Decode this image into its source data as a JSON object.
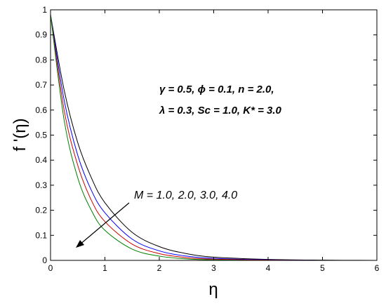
{
  "chart_data": {
    "type": "line",
    "xlabel": "η",
    "ylabel": "f '(η)",
    "xlim": [
      0,
      6
    ],
    "ylim": [
      0,
      1
    ],
    "xticks": [
      0,
      1,
      2,
      3,
      4,
      5,
      6
    ],
    "yticks": [
      0,
      0.1,
      0.2,
      0.3,
      0.4,
      0.5,
      0.6,
      0.7,
      0.8,
      0.9,
      1
    ],
    "xtick_labels": [
      "0",
      "1",
      "2",
      "3",
      "4",
      "5",
      "6"
    ],
    "ytick_labels": [
      "0",
      "0.1",
      "0.2",
      "0.3",
      "0.4",
      "0.5",
      "0.6",
      "0.7",
      "0.8",
      "0.9",
      "1"
    ],
    "grid": false,
    "parameters_line1": "γ = 0.5,  ϕ = 0.1,  n = 2.0,",
    "parameters_line2": "λ = 0.3,  Sc = 1.0,  K* = 3.0",
    "annotation": "M = 1.0, 2.0, 3.0, 4.0",
    "series": [
      {
        "color": "#000000",
        "x": [
          0,
          0.25,
          0.5,
          0.75,
          1,
          1.5,
          2,
          2.5,
          3,
          4,
          5,
          6
        ],
        "y": [
          0.98,
          0.68,
          0.47,
          0.33,
          0.23,
          0.112,
          0.055,
          0.027,
          0.013,
          0.004,
          0.001,
          0.0
        ]
      },
      {
        "color": "#0000ff",
        "x": [
          0,
          0.25,
          0.5,
          0.75,
          1,
          1.5,
          2,
          2.5,
          3,
          4,
          5,
          6
        ],
        "y": [
          0.98,
          0.64,
          0.42,
          0.28,
          0.19,
          0.085,
          0.038,
          0.017,
          0.008,
          0.002,
          0.0,
          0.0
        ]
      },
      {
        "color": "#cc0000",
        "x": [
          0,
          0.25,
          0.5,
          0.75,
          1,
          1.5,
          2,
          2.5,
          3,
          4,
          5,
          6
        ],
        "y": [
          0.98,
          0.6,
          0.38,
          0.24,
          0.155,
          0.065,
          0.027,
          0.011,
          0.005,
          0.001,
          0.0,
          0.0
        ]
      },
      {
        "color": "#008000",
        "x": [
          0,
          0.25,
          0.5,
          0.75,
          1,
          1.5,
          2,
          2.5,
          3,
          4,
          5,
          6
        ],
        "y": [
          0.98,
          0.56,
          0.33,
          0.2,
          0.12,
          0.045,
          0.017,
          0.006,
          0.002,
          0.0,
          0.0,
          0.0
        ]
      }
    ]
  }
}
